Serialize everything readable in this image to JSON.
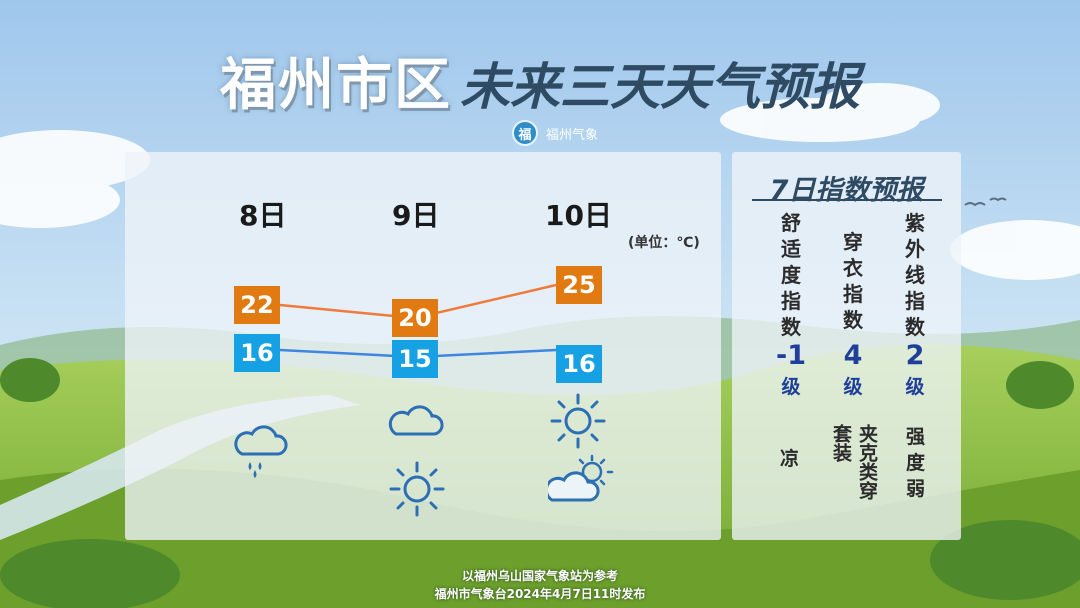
{
  "title": {
    "main": "福州市区",
    "sub": "未来三天天气预报"
  },
  "logo": {
    "badge": "福",
    "text": "福州气象"
  },
  "unit_label": "(单位：℃)",
  "days": [
    {
      "label": "8日",
      "high": "22",
      "low": "16",
      "icon_day": "cloud-rain-icon",
      "icon_night": ""
    },
    {
      "label": "9日",
      "high": "20",
      "low": "15",
      "icon_day": "cloud-icon",
      "icon_night": "sun-icon"
    },
    {
      "label": "10日",
      "high": "25",
      "low": "16",
      "icon_day": "sun-icon",
      "icon_night": "cloud-sun-icon"
    }
  ],
  "colors": {
    "high": "#e27a12",
    "low": "#15a1e4",
    "high_line": "#f07a3c",
    "low_line": "#3f86e0",
    "index_value": "#1e3f9a"
  },
  "index": {
    "title": "7日指数预报",
    "items": [
      {
        "name": "舒适度指数",
        "value": "-1",
        "unit": "级",
        "desc": "凉"
      },
      {
        "name": "穿衣指数",
        "value": "4",
        "unit": "级",
        "desc": "夹克类穿套装"
      },
      {
        "name": "紫外线指数",
        "value": "2",
        "unit": "级",
        "desc": "强度弱"
      }
    ]
  },
  "footer": {
    "line1": "以福州乌山国家气象站为参考",
    "line2": "福州市气象台2024年4月7日11时发布"
  }
}
